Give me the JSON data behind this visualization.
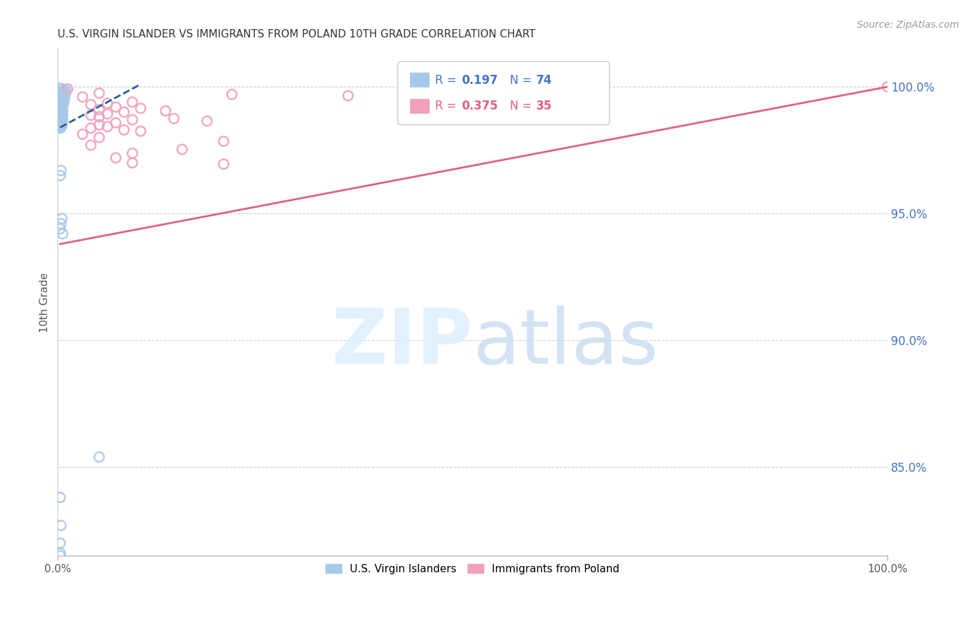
{
  "title": "U.S. VIRGIN ISLANDER VS IMMIGRANTS FROM POLAND 10TH GRADE CORRELATION CHART",
  "source": "Source: ZipAtlas.com",
  "ylabel": "10th Grade",
  "ytick_labels": [
    "100.0%",
    "95.0%",
    "90.0%",
    "85.0%"
  ],
  "ytick_values": [
    1.0,
    0.95,
    0.9,
    0.85
  ],
  "xlim": [
    0.0,
    1.0
  ],
  "ylim": [
    0.815,
    1.015
  ],
  "blue_R": 0.197,
  "blue_N": 74,
  "pink_R": 0.375,
  "pink_N": 35,
  "blue_color": "#a8c8e8",
  "pink_color": "#f0a0b8",
  "blue_line_color": "#2060a0",
  "pink_line_color": "#e06080",
  "legend_box_color": "#4472c4",
  "blue_scatter": [
    [
      0.003,
      0.9995
    ],
    [
      0.005,
      0.999
    ],
    [
      0.008,
      0.9985
    ],
    [
      0.01,
      0.9985
    ],
    [
      0.004,
      0.998
    ],
    [
      0.007,
      0.9978
    ],
    [
      0.003,
      0.9975
    ],
    [
      0.006,
      0.9972
    ],
    [
      0.004,
      0.997
    ],
    [
      0.009,
      0.9968
    ],
    [
      0.005,
      0.9965
    ],
    [
      0.003,
      0.9962
    ],
    [
      0.007,
      0.996
    ],
    [
      0.004,
      0.9958
    ],
    [
      0.006,
      0.9955
    ],
    [
      0.003,
      0.9953
    ],
    [
      0.005,
      0.995
    ],
    [
      0.008,
      0.9948
    ],
    [
      0.004,
      0.9945
    ],
    [
      0.003,
      0.9943
    ],
    [
      0.006,
      0.994
    ],
    [
      0.005,
      0.9937
    ],
    [
      0.003,
      0.9935
    ],
    [
      0.007,
      0.9932
    ],
    [
      0.004,
      0.993
    ],
    [
      0.003,
      0.9927
    ],
    [
      0.005,
      0.9924
    ],
    [
      0.006,
      0.9922
    ],
    [
      0.004,
      0.992
    ],
    [
      0.003,
      0.9917
    ],
    [
      0.005,
      0.9915
    ],
    [
      0.004,
      0.9912
    ],
    [
      0.003,
      0.991
    ],
    [
      0.006,
      0.9907
    ],
    [
      0.004,
      0.9905
    ],
    [
      0.003,
      0.9902
    ],
    [
      0.005,
      0.99
    ],
    [
      0.004,
      0.9897
    ],
    [
      0.003,
      0.9895
    ],
    [
      0.006,
      0.9892
    ],
    [
      0.004,
      0.989
    ],
    [
      0.003,
      0.9887
    ],
    [
      0.005,
      0.9885
    ],
    [
      0.004,
      0.9882
    ],
    [
      0.003,
      0.988
    ],
    [
      0.005,
      0.9877
    ],
    [
      0.004,
      0.9875
    ],
    [
      0.003,
      0.9872
    ],
    [
      0.006,
      0.987
    ],
    [
      0.004,
      0.9867
    ],
    [
      0.003,
      0.9865
    ],
    [
      0.005,
      0.9862
    ],
    [
      0.004,
      0.986
    ],
    [
      0.003,
      0.9857
    ],
    [
      0.005,
      0.9855
    ],
    [
      0.004,
      0.9852
    ],
    [
      0.003,
      0.985
    ],
    [
      0.005,
      0.9847
    ],
    [
      0.004,
      0.9845
    ],
    [
      0.003,
      0.9842
    ],
    [
      0.004,
      0.984
    ],
    [
      0.003,
      0.9837
    ],
    [
      0.004,
      0.967
    ],
    [
      0.003,
      0.965
    ],
    [
      0.005,
      0.948
    ],
    [
      0.004,
      0.946
    ],
    [
      0.003,
      0.944
    ],
    [
      0.006,
      0.942
    ],
    [
      0.05,
      0.854
    ],
    [
      0.003,
      0.838
    ],
    [
      0.004,
      0.827
    ],
    [
      0.003,
      0.82
    ],
    [
      0.003,
      0.815
    ],
    [
      0.003,
      0.816
    ]
  ],
  "pink_scatter": [
    [
      0.012,
      0.9992
    ],
    [
      0.05,
      0.9975
    ],
    [
      0.21,
      0.997
    ],
    [
      0.35,
      0.9965
    ],
    [
      0.03,
      0.996
    ],
    [
      0.09,
      0.994
    ],
    [
      0.06,
      0.9935
    ],
    [
      0.04,
      0.993
    ],
    [
      0.07,
      0.992
    ],
    [
      0.1,
      0.9915
    ],
    [
      0.05,
      0.991
    ],
    [
      0.13,
      0.9905
    ],
    [
      0.08,
      0.99
    ],
    [
      0.06,
      0.9893
    ],
    [
      0.04,
      0.9888
    ],
    [
      0.05,
      0.9882
    ],
    [
      0.14,
      0.9875
    ],
    [
      0.09,
      0.987
    ],
    [
      0.18,
      0.9865
    ],
    [
      0.07,
      0.9858
    ],
    [
      0.05,
      0.985
    ],
    [
      0.06,
      0.9843
    ],
    [
      0.04,
      0.9837
    ],
    [
      0.08,
      0.983
    ],
    [
      0.1,
      0.9825
    ],
    [
      0.03,
      0.9813
    ],
    [
      0.05,
      0.98
    ],
    [
      0.2,
      0.9785
    ],
    [
      0.04,
      0.977
    ],
    [
      0.15,
      0.9753
    ],
    [
      0.09,
      0.9738
    ],
    [
      0.07,
      0.972
    ],
    [
      0.09,
      0.97
    ],
    [
      0.2,
      0.9695
    ],
    [
      1.0,
      1.0
    ]
  ],
  "blue_trend_x": [
    0.003,
    0.1
  ],
  "blue_trend_y": [
    0.984,
    1.001
  ],
  "pink_trend_x": [
    0.003,
    1.0
  ],
  "pink_trend_y": [
    0.938,
    1.0
  ]
}
